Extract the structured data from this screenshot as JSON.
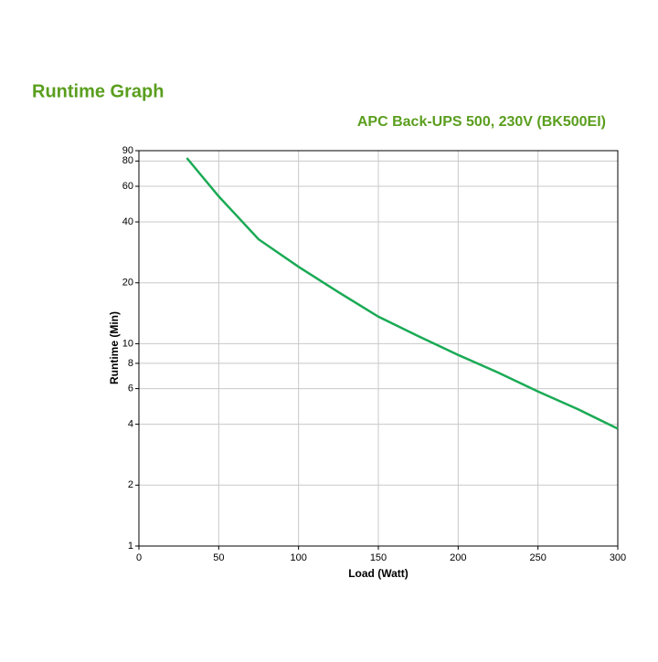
{
  "chart_data": {
    "type": "line",
    "title": "Runtime Graph",
    "subtitle": "APC Back-UPS 500, 230V (BK500EI)",
    "xlabel": "Load (Watt)",
    "ylabel": "Runtime (Min)",
    "x": [
      30,
      50,
      75,
      100,
      125,
      150,
      175,
      200,
      225,
      250,
      275,
      300
    ],
    "values": [
      82.8,
      53.5,
      32.8,
      24,
      18,
      13.6,
      10.9,
      8.8,
      7.2,
      5.8,
      4.75,
      3.8
    ],
    "color": "#1aaa55",
    "ylog": true,
    "xlim": [
      0,
      300
    ],
    "xticks": [
      0,
      50,
      100,
      150,
      200,
      250,
      300
    ],
    "ylim": [
      1,
      90
    ],
    "yticks": [
      1,
      2,
      4,
      6,
      8,
      10,
      20,
      40,
      60,
      80,
      90
    ],
    "grid": true
  }
}
